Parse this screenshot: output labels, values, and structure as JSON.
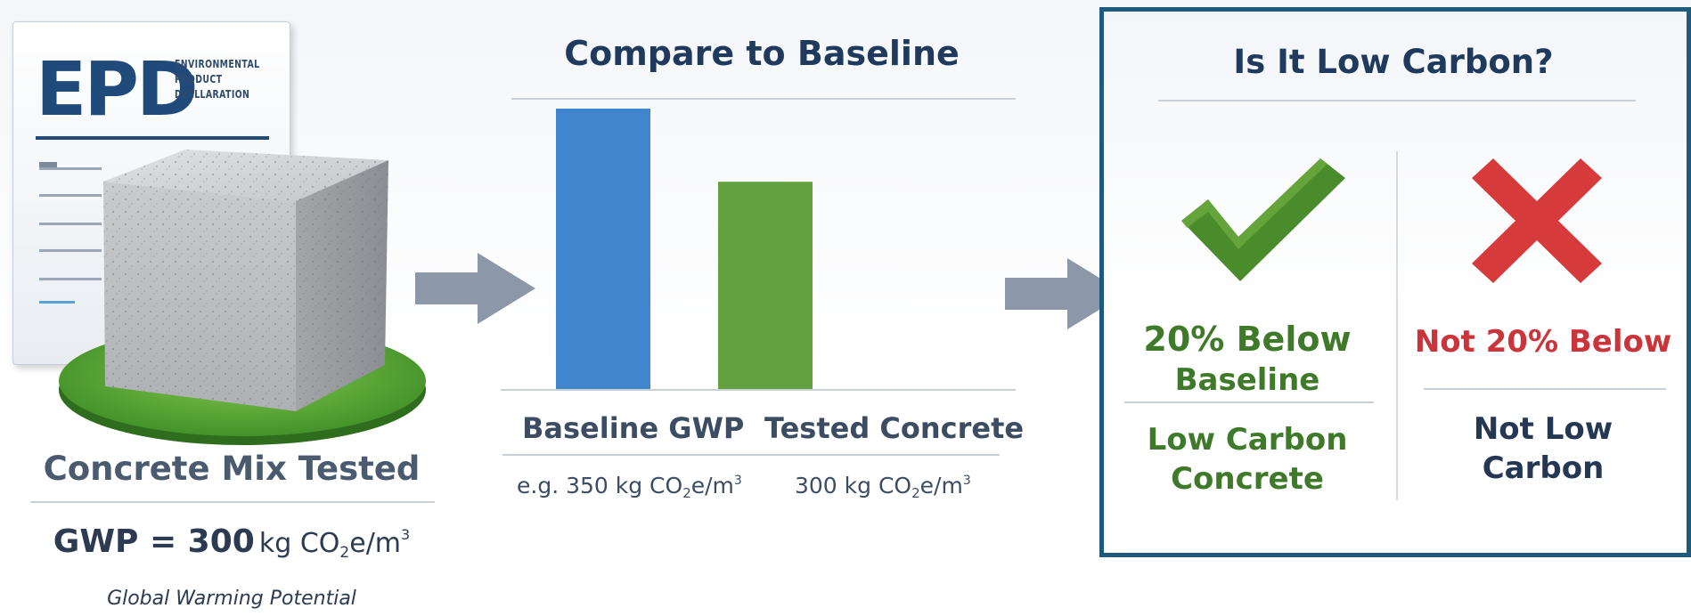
{
  "epd": {
    "acronym": "EPD",
    "subtitle_line1": "ENVIRONMENTAL",
    "subtitle_line2": "PRODUCT",
    "subtitle_line3": "DECLLARATION"
  },
  "mix": {
    "title": "Concrete Mix Tested",
    "gwp_label": "GWP = 300",
    "unit_main": "kg CO",
    "unit_sub": "2",
    "unit_tail": "e/m",
    "unit_sup": "3",
    "caption": "Global Warming Potential"
  },
  "compare": {
    "title": "Compare to Baseline",
    "baseline_label": "Baseline GWP",
    "tested_label": "Tested Concrete",
    "baseline_value_prefix": "e.g. 350 kg CO",
    "tested_value_prefix": "300 kg CO",
    "value_sub": "2",
    "value_tail": "e/m",
    "value_sup": "3"
  },
  "chart_data": {
    "type": "bar",
    "categories": [
      "Baseline GWP",
      "Tested Concrete"
    ],
    "values": [
      350,
      300
    ],
    "colors": [
      "#3f86cf",
      "#63a23e"
    ],
    "title": "Compare to Baseline",
    "xlabel": "",
    "ylabel": "",
    "ylim": [
      0,
      350
    ],
    "grid": false
  },
  "low_carbon": {
    "title": "Is It Low Carbon?",
    "yes_headline_line1": "20% Below",
    "yes_headline_line2": "Baseline",
    "yes_result_line1": "Low Carbon",
    "yes_result_line2": "Concrete",
    "no_headline": "Not 20% Below",
    "no_result_line1": "Not Low",
    "no_result_line2": "Carbon",
    "check_icon": "check-mark-icon",
    "cross_icon": "cross-mark-icon"
  },
  "colors": {
    "navy": "#1f4a7a",
    "box_border": "#1d5a7c",
    "green": "#3f7a2a",
    "red": "#c9353a",
    "arrow": "#8c98a8"
  }
}
